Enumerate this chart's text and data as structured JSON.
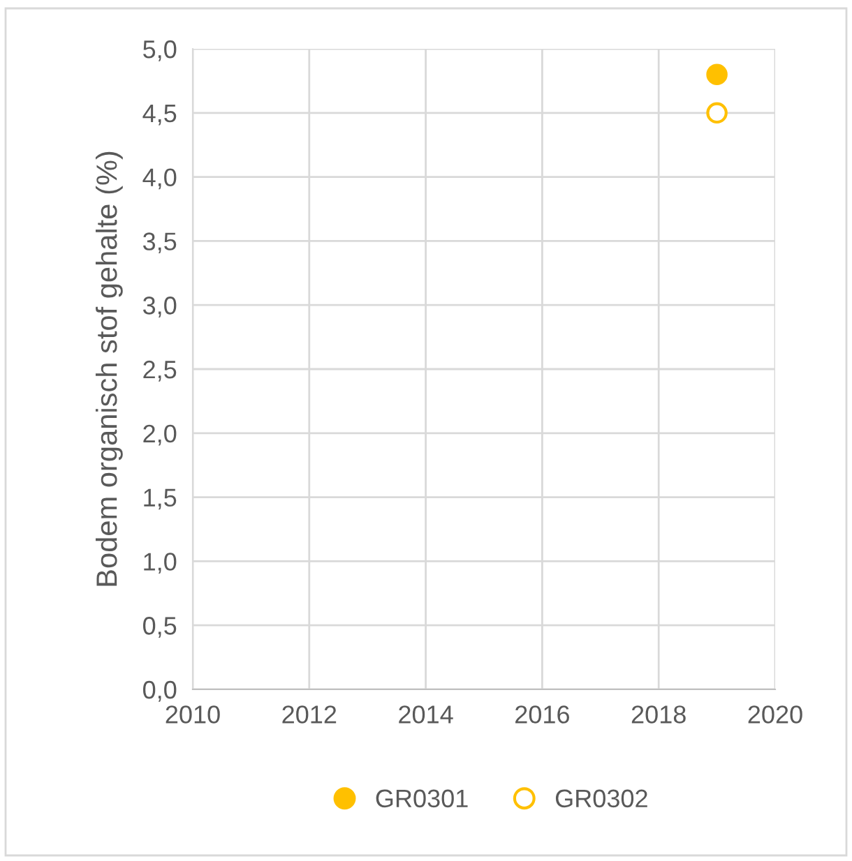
{
  "chart_data": {
    "type": "scatter",
    "ylabel": "Bodem organisch stof gehalte (%)",
    "series": [
      {
        "name": "GR0301",
        "color": "#ffc000",
        "x": [
          2019
        ],
        "values": [
          4.8
        ]
      },
      {
        "name": "GR0302",
        "color": "#ffc000",
        "x": [
          2019
        ],
        "values": [
          4.5
        ]
      }
    ],
    "xlim": [
      2010,
      2020
    ],
    "xticks": [
      2010,
      2012,
      2014,
      2016,
      2018,
      2020
    ],
    "ylim": [
      0,
      5
    ],
    "yticks": [
      {
        "value": 0,
        "label": "0,0"
      },
      {
        "value": 0.5,
        "label": "0,5"
      },
      {
        "value": 1,
        "label": "1,0"
      },
      {
        "value": 1.5,
        "label": "1,5"
      },
      {
        "value": 2,
        "label": "2,0"
      },
      {
        "value": 2.5,
        "label": "2,5"
      },
      {
        "value": 3,
        "label": "3,0"
      },
      {
        "value": 3.5,
        "label": "3,5"
      },
      {
        "value": 4,
        "label": "4,0"
      },
      {
        "value": 4.5,
        "label": "4,5"
      },
      {
        "value": 5,
        "label": "5,0"
      }
    ],
    "grid": true,
    "legend": "bottom",
    "marker": "circle"
  }
}
